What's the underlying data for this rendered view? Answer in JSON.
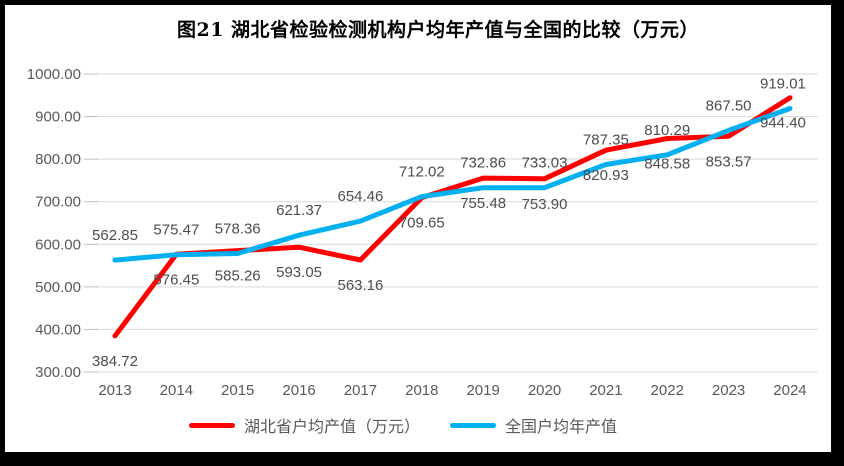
{
  "chart_data": {
    "type": "line",
    "title": "图21 湖北省检验检测机构户均年产值与全国的比较（万元）",
    "categories": [
      "2013",
      "2014",
      "2015",
      "2016",
      "2017",
      "2018",
      "2019",
      "2020",
      "2021",
      "2022",
      "2023",
      "2024"
    ],
    "series": [
      {
        "name": "湖北省户均产值（万元）",
        "color": "#fe0000",
        "label_position": "below",
        "values": [
          384.72,
          576.45,
          585.26,
          593.05,
          563.16,
          709.65,
          755.48,
          753.9,
          820.93,
          848.58,
          853.57,
          944.4
        ]
      },
      {
        "name": "全国户均年产值",
        "color": "#00b0f0",
        "label_position": "above",
        "values": [
          562.85,
          575.47,
          578.36,
          621.37,
          654.46,
          712.02,
          732.86,
          733.03,
          787.35,
          810.29,
          867.5,
          919.01
        ]
      }
    ],
    "ylim": [
      300,
      1000
    ],
    "yticks": [
      {
        "value": 1000,
        "label": "1000.00"
      },
      {
        "value": 900,
        "label": "900.00"
      },
      {
        "value": 800,
        "label": "800.00"
      },
      {
        "value": 700,
        "label": "700.00"
      },
      {
        "value": 600,
        "label": "600.00"
      },
      {
        "value": 500,
        "label": "500.00"
      },
      {
        "value": 400,
        "label": "400.00"
      },
      {
        "value": 300,
        "label": "300.00"
      }
    ],
    "grid": true,
    "legend_position": "bottom",
    "colors": {
      "gridline": "#d9d9d9",
      "tick": "#bfbfbf",
      "axis_text": "#595959",
      "data_label_text": "#4d4d4d",
      "frame": "#000000",
      "background": "#ffffff"
    }
  }
}
